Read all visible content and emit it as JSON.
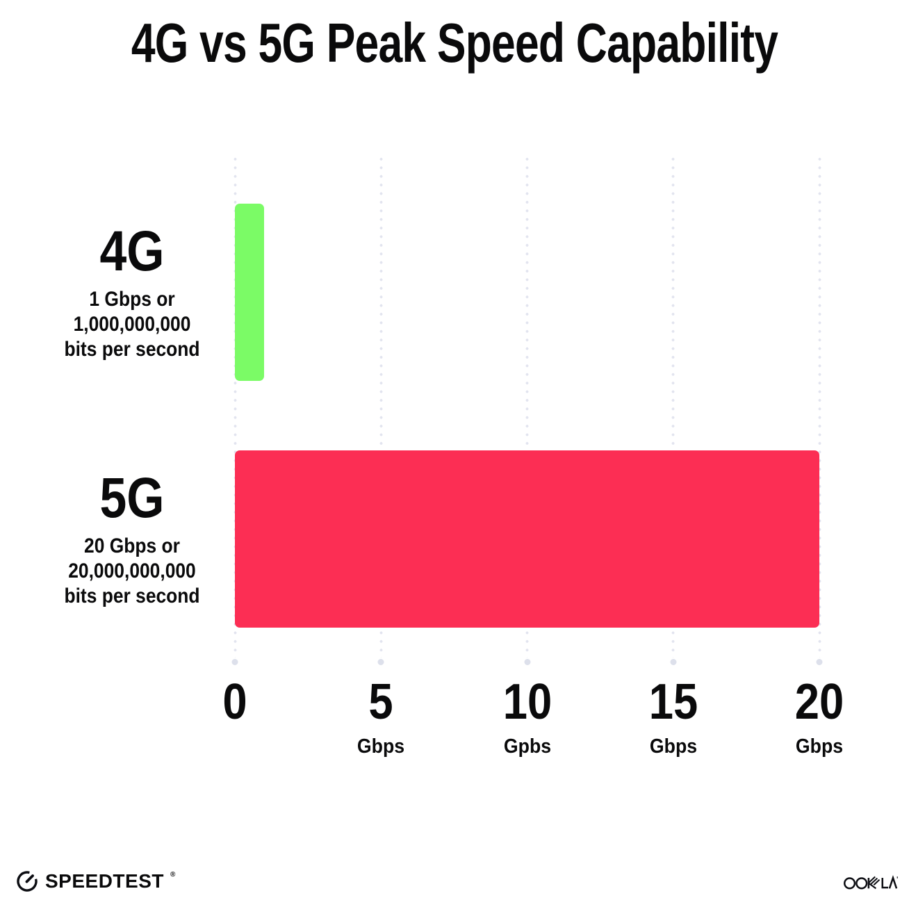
{
  "chart_data": {
    "type": "bar",
    "orientation": "horizontal",
    "title": "4G vs 5G Peak Speed Capability",
    "xlabel": "",
    "ylabel": "",
    "xlim": [
      0,
      20
    ],
    "grid": "dotted-vertical-gridlines",
    "legend": "none",
    "categories": [
      "4G",
      "5G"
    ],
    "rows": [
      {
        "category": "4G",
        "value": 1,
        "color": "#7BFB66",
        "sublabel_lines": [
          "1 Gbps or",
          "1,000,000,000",
          "bits per second"
        ]
      },
      {
        "category": "5G",
        "value": 20,
        "color": "#FC2E54",
        "sublabel_lines": [
          "20 Gbps or",
          "20,000,000,000",
          "bits per second"
        ]
      }
    ],
    "x_ticks": [
      {
        "value": 0,
        "label": "0",
        "unit": ""
      },
      {
        "value": 5,
        "label": "5",
        "unit": "Gbps"
      },
      {
        "value": 10,
        "label": "10",
        "unit": "Gpbs"
      },
      {
        "value": 15,
        "label": "15",
        "unit": "Gbps"
      },
      {
        "value": 20,
        "label": "20",
        "unit": "Gbps"
      }
    ]
  },
  "footer": {
    "speedtest_logo_text": "SPEEDTEST",
    "speedtest_trademark": "®",
    "ookla_logo_text": "OOKLA"
  },
  "colors": {
    "bar_4g": "#7BFB66",
    "bar_5g": "#FC2E54",
    "grid_dot": "#E2E4EF",
    "grid_end_dot": "#DDE0EB",
    "text": "#0A0A0B",
    "background": "#FFFFFF"
  }
}
